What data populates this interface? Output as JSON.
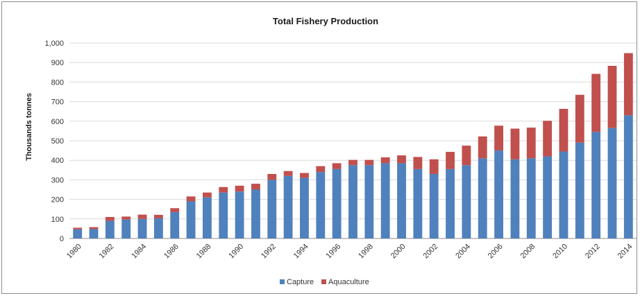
{
  "chart_data": {
    "type": "bar",
    "stacked": true,
    "title": "Total Fishery Production",
    "xlabel": "",
    "ylabel": "Thousands tonnes",
    "ylim": [
      0,
      1000
    ],
    "yticks": [
      "0",
      "100",
      "200",
      "300",
      "400",
      "500",
      "600",
      "700",
      "800",
      "900",
      "1,000"
    ],
    "grid": "horizontal",
    "legend_position": "bottom",
    "categories": [
      "1980",
      "1981",
      "1982",
      "1983",
      "1984",
      "1985",
      "1986",
      "1987",
      "1988",
      "1989",
      "1990",
      "1991",
      "1992",
      "1993",
      "1994",
      "1995",
      "1996",
      "1997",
      "1998",
      "1999",
      "2000",
      "2001",
      "2002",
      "2003",
      "2004",
      "2005",
      "2006",
      "2007",
      "2008",
      "2009",
      "2010",
      "2011",
      "2012",
      "2013",
      "2014"
    ],
    "xtick_labels": [
      "1980",
      "",
      "1982",
      "",
      "1984",
      "",
      "1986",
      "",
      "1988",
      "",
      "1990",
      "",
      "1992",
      "",
      "1994",
      "",
      "1996",
      "",
      "1998",
      "",
      "2000",
      "",
      "2002",
      "",
      "2004",
      "",
      "2006",
      "",
      "2008",
      "",
      "2010",
      "",
      "2012",
      "",
      "2014"
    ],
    "series": [
      {
        "name": "Capture",
        "color": "#4f81bd",
        "values": [
          47,
          48,
          90,
          97,
          100,
          103,
          135,
          190,
          210,
          235,
          240,
          250,
          300,
          320,
          310,
          340,
          355,
          375,
          375,
          385,
          385,
          355,
          330,
          355,
          375,
          410,
          450,
          405,
          410,
          420,
          445,
          490,
          545,
          565,
          630
        ]
      },
      {
        "name": "Aquaculture",
        "color": "#c0504d",
        "values": [
          8,
          10,
          20,
          15,
          22,
          18,
          20,
          25,
          25,
          28,
          30,
          30,
          30,
          25,
          25,
          30,
          30,
          27,
          27,
          30,
          40,
          62,
          75,
          88,
          100,
          112,
          127,
          157,
          157,
          182,
          218,
          245,
          297,
          318,
          318
        ]
      }
    ]
  }
}
